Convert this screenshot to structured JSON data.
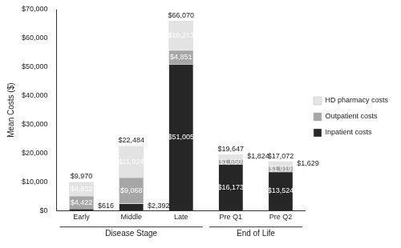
{
  "chart_data": {
    "type": "bar",
    "y_label": "Mean Costs ($)",
    "categories": [
      "Early",
      "Middle",
      "Late",
      "Pre Q1",
      "Pre Q2"
    ],
    "groups": [
      {
        "label": "Disease Stage",
        "categories": [
          "Early",
          "Middle",
          "Late"
        ]
      },
      {
        "label": "End of Life",
        "categories": [
          "Pre Q1",
          "Pre Q2"
        ]
      }
    ],
    "series": [
      {
        "name": "Inpatient costs",
        "color": "#262626",
        "values": [
          616,
          2392,
          51005,
          16173,
          13524
        ],
        "value_labels": [
          "$616",
          "$2,392",
          "$51,005",
          "$16,173",
          "$13,524"
        ]
      },
      {
        "name": "Outpatient costs",
        "color": "#a6a6a6",
        "values": [
          4422,
          9068,
          4851,
          1650,
          1919
        ],
        "value_labels": [
          "$4,422",
          "$9,068",
          "$4,851",
          "$1,650",
          "$1,919"
        ]
      },
      {
        "name": "HD pharmacy costs",
        "color": "#e3e3e3",
        "values": [
          4932,
          11024,
          10213,
          1824,
          1629
        ],
        "value_labels": [
          "$4,932",
          "$11,024",
          "$10,213",
          "$1,824",
          "$1,629"
        ]
      }
    ],
    "totals": [
      9970,
      22484,
      66070,
      19647,
      17072
    ],
    "total_labels": [
      "$9,970",
      "$22,484",
      "$66,070",
      "$19,647",
      "$17,072"
    ],
    "stacked": true,
    "data_labels": true,
    "legend": "right",
    "grid": false,
    "ylim": [
      0,
      70000
    ],
    "yticks": [
      {
        "value": 0,
        "label": "$0"
      },
      {
        "value": 10000,
        "label": "$10,000"
      },
      {
        "value": 20000,
        "label": "$20,000"
      },
      {
        "value": 30000,
        "label": "$30,000"
      },
      {
        "value": 40000,
        "label": "$40,000"
      },
      {
        "value": 50000,
        "label": "$50,000"
      },
      {
        "value": 60000,
        "label": "$60,000"
      },
      {
        "value": 70000,
        "label": "$70,000"
      }
    ]
  }
}
